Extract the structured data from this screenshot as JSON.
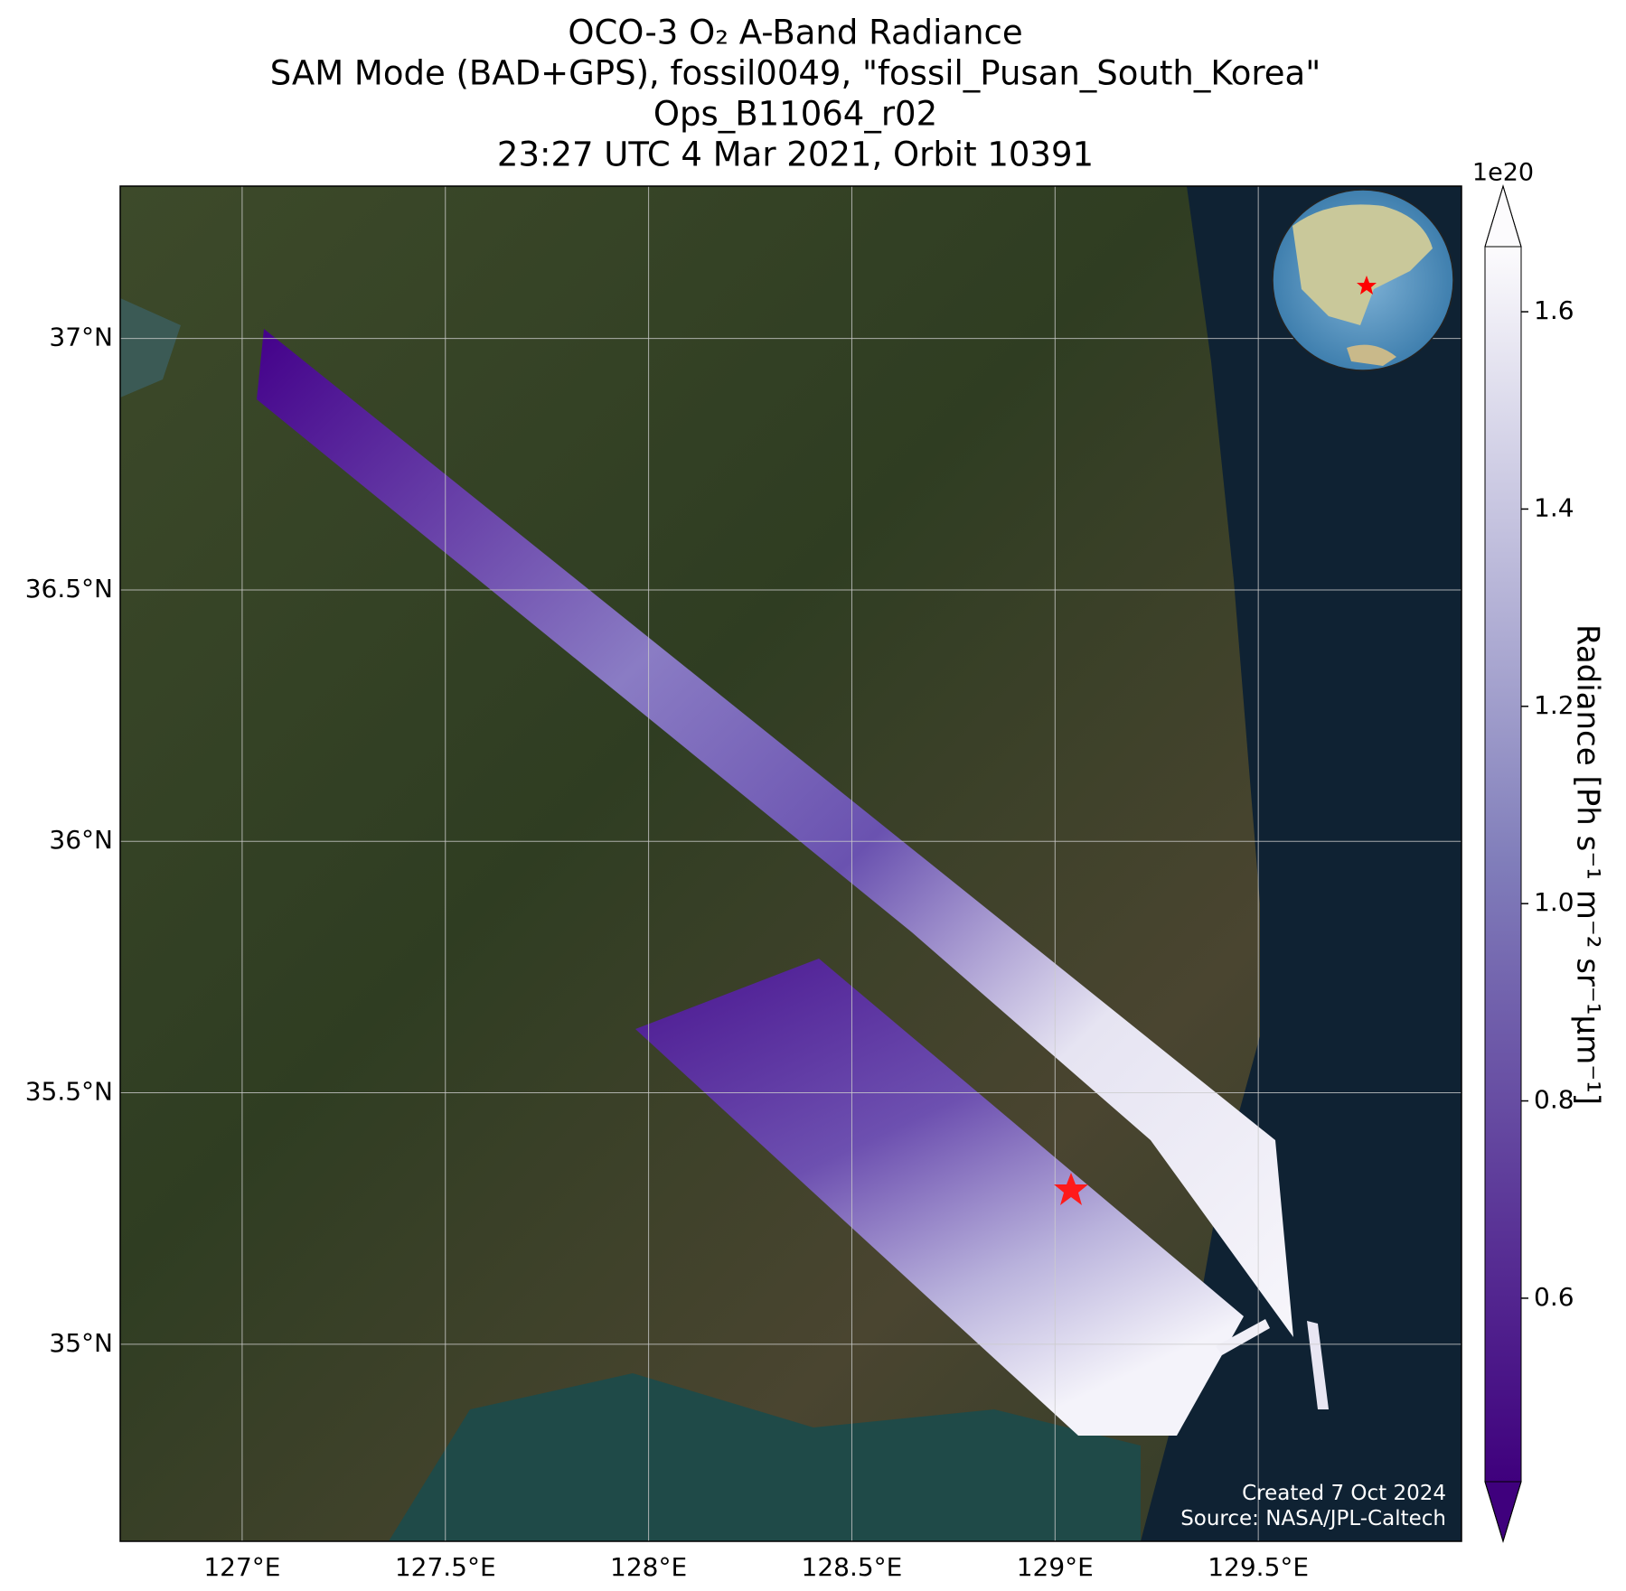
{
  "chart_data": {
    "type": "map",
    "title": [
      "OCO-3 O₂ A-Band Radiance",
      "SAM Mode (BAD+GPS), fossil0049, \"fossil_Pusan_South_Korea\"",
      "Ops_B11064_r02",
      "23:27 UTC 4 Mar 2021, Orbit 10391"
    ],
    "xlim": [
      126.7,
      130.0
    ],
    "ylim": [
      34.608,
      37.303
    ],
    "xticks": [
      {
        "value": 127,
        "label": "127°E"
      },
      {
        "value": 127.5,
        "label": "127.5°E"
      },
      {
        "value": 128,
        "label": "128°E"
      },
      {
        "value": 128.5,
        "label": "128.5°E"
      },
      {
        "value": 129,
        "label": "129°E"
      },
      {
        "value": 129.5,
        "label": "129.5°E"
      }
    ],
    "yticks": [
      {
        "value": 35,
        "label": "35°N"
      },
      {
        "value": 35.5,
        "label": "35.5°N"
      },
      {
        "value": 36,
        "label": "36°N"
      },
      {
        "value": 36.5,
        "label": "36.5°N"
      },
      {
        "value": 37,
        "label": "37°N"
      }
    ],
    "grid": true,
    "colorbar": {
      "label": "Radiance [Ph s⁻¹ m⁻² sr⁻¹μm⁻¹]",
      "scale": "1e20",
      "lim": [
        0.414,
        1.666
      ],
      "ticks": [
        0.6,
        0.8,
        {
          "value": 1.0,
          "label": "1.0"
        },
        1.2,
        1.4,
        1.6
      ],
      "colors": [
        "#3f007d",
        "#807dba",
        "#fcfbfd"
      ]
    },
    "annotations": [
      "Created 7 Oct 2024",
      "Source: NASA/JPL-Caltech"
    ]
  }
}
